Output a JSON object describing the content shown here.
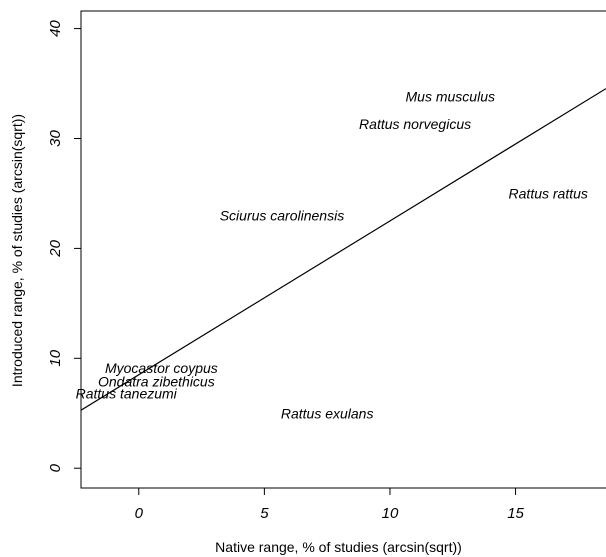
{
  "chart_data": {
    "type": "scatter",
    "title": "",
    "xlabel": "Native range, % of studies (arcsin(sqrt))",
    "ylabel": "Introduced range, % of studies (arcsin(sqrt))",
    "xlim": [
      -2.3,
      18.6
    ],
    "ylim": [
      -1.8,
      41.6
    ],
    "x_ticks": [
      0,
      5,
      10,
      15
    ],
    "y_ticks": [
      0,
      10,
      20,
      30,
      40
    ],
    "grid": false,
    "legend": "none",
    "points": [
      {
        "label": "Mus musculus",
        "x": 12.4,
        "y": 33.8
      },
      {
        "label": "Rattus norvegicus",
        "x": 11.0,
        "y": 31.3
      },
      {
        "label": "Rattus rattus",
        "x": 16.3,
        "y": 25.0
      },
      {
        "label": "Sciurus carolinensis",
        "x": 5.7,
        "y": 23.0
      },
      {
        "label": "Myocastor coypus",
        "x": 0.9,
        "y": 9.1
      },
      {
        "label": "Ondatra zibethicus",
        "x": 0.7,
        "y": 7.9
      },
      {
        "label": "Rattus tanezumi",
        "x": -0.5,
        "y": 6.8
      },
      {
        "label": "Rattus exulans",
        "x": 7.5,
        "y": 5.0
      }
    ],
    "fit_line": {
      "intercept": 8.5,
      "slope": 1.4
    }
  },
  "colors": {
    "background": "#ffffff",
    "ink": "#000000"
  }
}
